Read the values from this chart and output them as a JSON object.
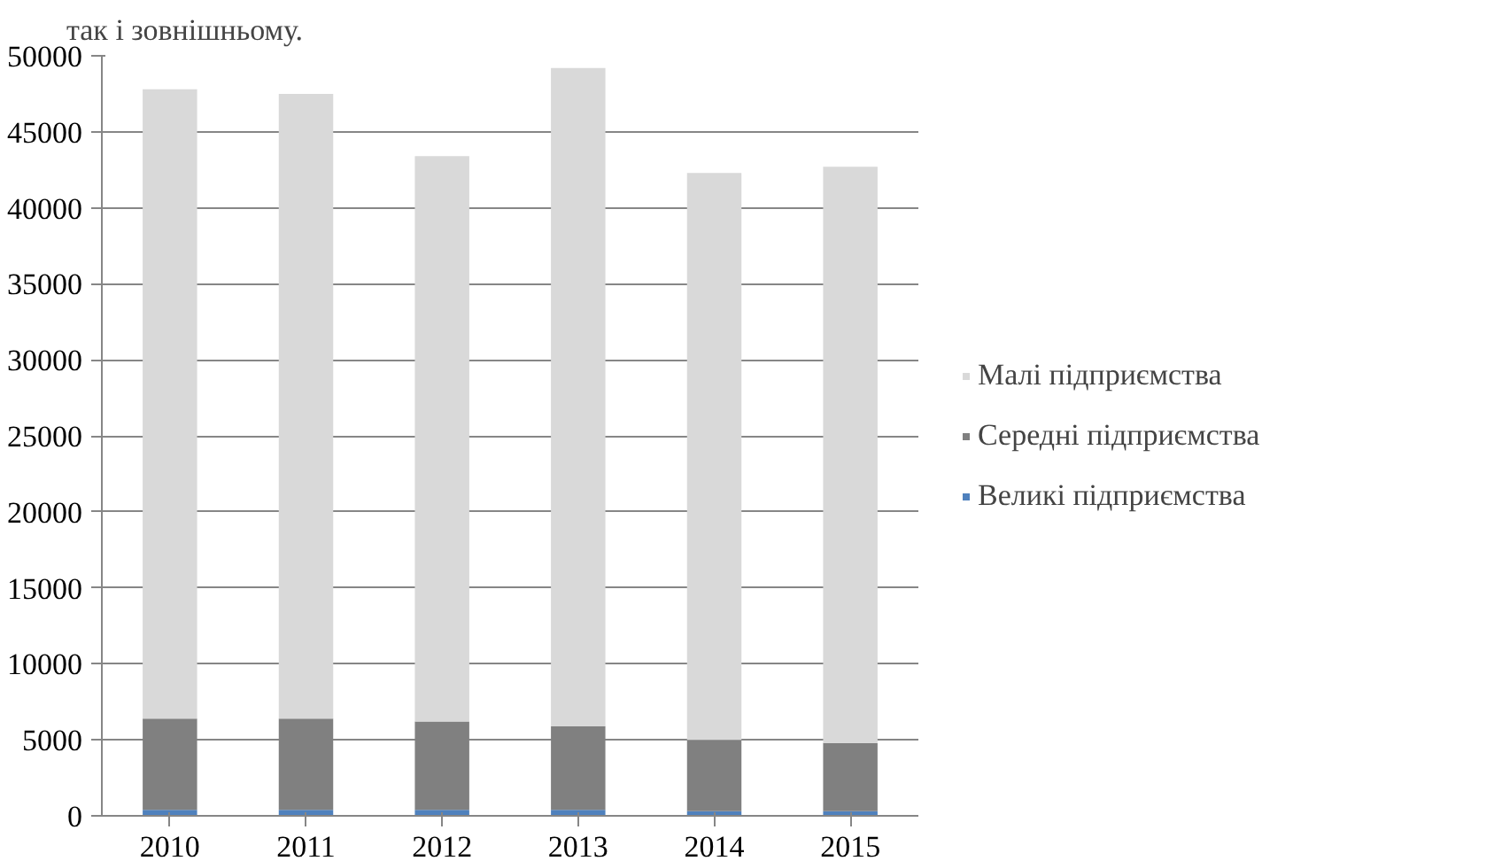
{
  "chart_data": {
    "type": "bar",
    "stacked": true,
    "categories": [
      "2010",
      "2011",
      "2012",
      "2013",
      "2014",
      "2015"
    ],
    "series": [
      {
        "name": "Великі підприємства",
        "color": "#4f81bd",
        "values": [
          400,
          400,
          400,
          400,
          300,
          300
        ]
      },
      {
        "name": "Середні підприємства",
        "color": "#808080",
        "values": [
          6000,
          6000,
          5800,
          5500,
          4700,
          4500
        ]
      },
      {
        "name": "Малі підприємства",
        "color": "#d9d9d9",
        "values": [
          41400,
          41100,
          37200,
          43300,
          37300,
          37900
        ]
      }
    ],
    "ylim": [
      0,
      50000
    ],
    "yticks": [
      0,
      5000,
      10000,
      15000,
      20000,
      25000,
      30000,
      35000,
      40000,
      45000,
      50000
    ],
    "grid": "y",
    "legend": "right",
    "annotations": [
      "так і зовнішньому."
    ]
  }
}
